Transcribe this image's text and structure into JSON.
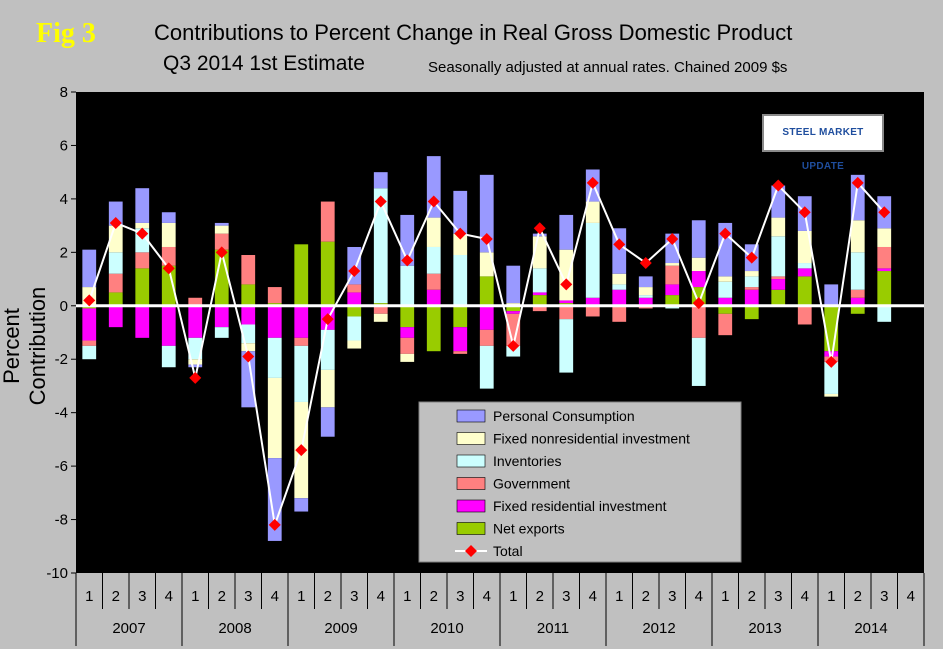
{
  "fig_label": "Fig 3",
  "title_line1": "Contributions to Percent Change in Real Gross Domestic Product",
  "title_line2": "Q3 2014 1st Estimate",
  "subtitle": "Seasonally adjusted at annual rates. Chained 2009 $s",
  "logo_text": "STEEL MARKET UPDATE",
  "chart_data": {
    "type": "bar",
    "stacked": true,
    "ylabel": "Percent Contribution",
    "ylim": [
      -10,
      8
    ],
    "yticks": [
      -10,
      -8,
      -6,
      -4,
      -2,
      0,
      2,
      4,
      6,
      8
    ],
    "categories": [
      "1",
      "2",
      "3",
      "4",
      "1",
      "2",
      "3",
      "4",
      "1",
      "2",
      "3",
      "4",
      "1",
      "2",
      "3",
      "4",
      "1",
      "2",
      "3",
      "4",
      "1",
      "2",
      "3",
      "4",
      "1",
      "2",
      "3",
      "4",
      "1",
      "2",
      "3",
      "4"
    ],
    "groups": [
      {
        "label": "2007",
        "count": 4
      },
      {
        "label": "2008",
        "count": 4
      },
      {
        "label": "2009",
        "count": 4
      },
      {
        "label": "2010",
        "count": 4
      },
      {
        "label": "2011",
        "count": 4
      },
      {
        "label": "2012",
        "count": 4
      },
      {
        "label": "2013",
        "count": 4
      },
      {
        "label": "2014",
        "count": 4
      }
    ],
    "legend_position": "bottom-center",
    "series": [
      {
        "name": "Net exports",
        "color": "#99cc00",
        "values": [
          -0.1,
          0.5,
          1.4,
          1.5,
          0,
          2.1,
          0.8,
          0.1,
          2.3,
          2.4,
          -0.4,
          0.1,
          -0.8,
          -1.7,
          -0.8,
          1.1,
          -0.2,
          0.4,
          0.1,
          0,
          0,
          0,
          0.4,
          0.7,
          -0.3,
          -0.5,
          0.6,
          1.1,
          -1.7,
          -0.3,
          1.3,
          0
        ]
      },
      {
        "name": "Fixed residential investment",
        "color": "#ff00ff",
        "values": [
          -1.2,
          -0.8,
          -1.2,
          -1.5,
          -1.2,
          -0.8,
          -0.7,
          -1.2,
          -1.2,
          -0.9,
          0.5,
          0,
          -0.4,
          0.6,
          -0.9,
          -0.9,
          -0.1,
          0.1,
          0.1,
          0.3,
          0.6,
          0.3,
          0.4,
          0.6,
          0.3,
          0.6,
          0.4,
          0.3,
          -0.2,
          0.3,
          0.1,
          0
        ]
      },
      {
        "name": "Government",
        "color": "#ff8080",
        "values": [
          -0.2,
          0.7,
          0.6,
          0.7,
          0.3,
          0.6,
          1.1,
          0.6,
          -0.3,
          1.5,
          0.3,
          -0.3,
          -0.6,
          0.6,
          -0.1,
          -0.6,
          -1.2,
          -0.2,
          -0.5,
          -0.4,
          -0.6,
          -0.1,
          0.7,
          -1.2,
          -0.8,
          0.1,
          0.1,
          -0.7,
          -0.2,
          0.3,
          0.8,
          0
        ]
      },
      {
        "name": "Inventories",
        "color": "#ccffff",
        "values": [
          -0.5,
          0.8,
          0.9,
          -0.8,
          -0.8,
          -0.4,
          -0.7,
          -1.5,
          -2.1,
          -1.5,
          -0.9,
          4.3,
          1.5,
          1.0,
          1.9,
          -1.6,
          -0.4,
          0.9,
          -2.0,
          2.8,
          0.2,
          0.1,
          -0.1,
          -1.8,
          0.6,
          0.4,
          1.5,
          0.2,
          -1.2,
          1.4,
          -0.6,
          0
        ]
      },
      {
        "name": "Fixed nonresidential investment",
        "color": "#ffffcc",
        "values": [
          0.7,
          1.0,
          0.2,
          0.9,
          -0.2,
          0.3,
          -0.3,
          -3.0,
          -3.6,
          -1.4,
          -0.3,
          -0.3,
          -0.3,
          1.1,
          0.8,
          0.9,
          0.1,
          1.2,
          1.9,
          0.8,
          0.4,
          0.3,
          0.1,
          0.5,
          0.2,
          0.2,
          0.7,
          1.2,
          -0.1,
          1.2,
          0.7,
          0
        ]
      },
      {
        "name": "Personal Consumption",
        "color": "#9999ff",
        "values": [
          1.4,
          0.9,
          1.3,
          0.4,
          -0.1,
          0.1,
          -2.1,
          -3.1,
          -0.5,
          -1.1,
          1.4,
          0.6,
          1.9,
          2.3,
          1.6,
          2.9,
          1.4,
          0.1,
          1.3,
          1.2,
          1.7,
          0.4,
          1.1,
          1.4,
          2.0,
          1.0,
          1.2,
          1.3,
          0.8,
          1.7,
          1.2,
          0
        ]
      }
    ],
    "total": {
      "name": "Total",
      "color": "#ff0000",
      "line_color": "#ffffff",
      "values": [
        0.2,
        3.1,
        2.7,
        1.4,
        -2.7,
        2.0,
        -1.9,
        -8.2,
        -5.4,
        -0.5,
        1.3,
        3.9,
        1.7,
        3.9,
        2.7,
        2.5,
        -1.5,
        2.9,
        0.8,
        4.6,
        2.3,
        1.6,
        2.5,
        0.1,
        2.7,
        1.8,
        4.5,
        3.5,
        -2.1,
        4.6,
        3.5,
        null
      ]
    }
  }
}
